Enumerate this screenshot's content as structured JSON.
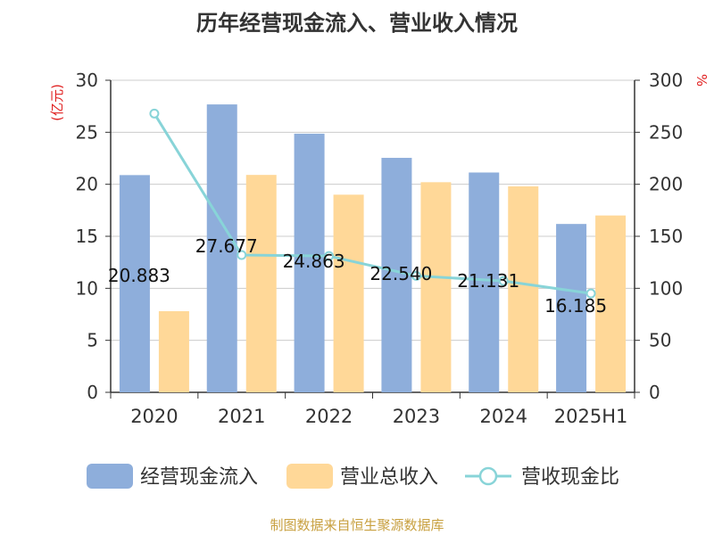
{
  "chart_data": {
    "type": "bar",
    "title": "历年经营现金流入、营业收入情况",
    "categories": [
      "2020",
      "2021",
      "2022",
      "2023",
      "2024",
      "2025H1"
    ],
    "series": [
      {
        "name": "经营现金流入",
        "kind": "bar",
        "axis": "left",
        "color": "#8eaedb",
        "values": [
          20.883,
          27.677,
          24.863,
          22.54,
          21.131,
          16.185
        ]
      },
      {
        "name": "营业总收入",
        "kind": "bar",
        "axis": "left",
        "color": "#ffd898",
        "values": [
          7.8,
          20.9,
          19.0,
          20.2,
          19.8,
          17.0
        ]
      },
      {
        "name": "营收现金比",
        "kind": "line",
        "axis": "right",
        "color": "#88d4d8",
        "values": [
          268,
          132,
          131,
          112,
          107,
          95
        ]
      }
    ],
    "data_labels": [
      "20.883",
      "27.677",
      "24.863",
      "22.540",
      "21.131",
      "16.185"
    ],
    "y_left": {
      "label": "(亿元)",
      "ylim": [
        0,
        30
      ],
      "ticks": [
        "0",
        "5",
        "10",
        "15",
        "20",
        "25",
        "30"
      ]
    },
    "y_right": {
      "label": "%",
      "ylim": [
        0,
        300
      ],
      "ticks": [
        "0",
        "50",
        "100",
        "150",
        "200",
        "250",
        "300"
      ]
    },
    "grid": true,
    "legend": "bottom"
  },
  "source": "制图数据来自恒生聚源数据库"
}
